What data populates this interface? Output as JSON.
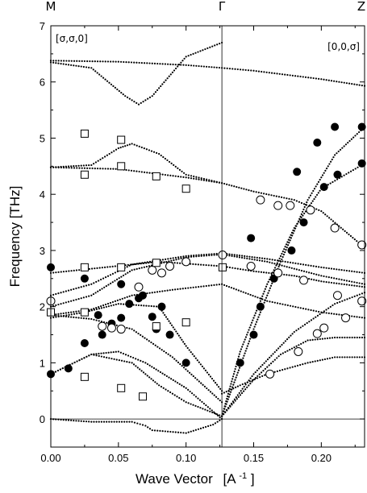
{
  "chart_data": {
    "type": "scatter",
    "xlabel": "Wave Vector",
    "xlabel_unit": "[A",
    "xlabel_sup": "-1",
    "xlabel_end": "]",
    "ylabel": "Frequency [THz]",
    "xlim": [
      0.0,
      0.232
    ],
    "ylim": [
      -0.5,
      7.0
    ],
    "gamma_x": 0.1265,
    "xticks": [
      0.0,
      0.05,
      0.1,
      0.15,
      0.2
    ],
    "xtick_labels": [
      "0.00",
      "0.05",
      "0.10",
      "0.15",
      "0.20"
    ],
    "yticks": [
      0,
      1,
      2,
      3,
      4,
      5,
      6,
      7
    ],
    "ytick_labels": [
      "0",
      "1",
      "2",
      "3",
      "4",
      "5",
      "6",
      "7"
    ],
    "symmetry_labels": {
      "left": "M",
      "center": "Γ",
      "right": "Z"
    },
    "panel_labels": {
      "left": "[σ,σ,0]",
      "right": "[0,0,σ]"
    },
    "grid": false,
    "series": [
      {
        "marker": "filled-circle",
        "points": [
          [
            0.0,
            2.7
          ],
          [
            0.0,
            0.8
          ],
          [
            0.013,
            0.9
          ],
          [
            0.025,
            2.5
          ],
          [
            0.025,
            1.35
          ],
          [
            0.035,
            1.85
          ],
          [
            0.038,
            1.5
          ],
          [
            0.045,
            1.7
          ],
          [
            0.052,
            2.4
          ],
          [
            0.052,
            1.8
          ],
          [
            0.058,
            2.05
          ],
          [
            0.065,
            2.15
          ],
          [
            0.068,
            2.2
          ],
          [
            0.075,
            1.82
          ],
          [
            0.078,
            1.6
          ],
          [
            0.082,
            2.0
          ],
          [
            0.088,
            1.5
          ],
          [
            0.1,
            1.0
          ],
          [
            0.14,
            1.0
          ],
          [
            0.148,
            3.22
          ],
          [
            0.15,
            1.5
          ],
          [
            0.155,
            2.0
          ],
          [
            0.165,
            2.5
          ],
          [
            0.178,
            3.0
          ],
          [
            0.182,
            4.4
          ],
          [
            0.187,
            3.5
          ],
          [
            0.197,
            4.92
          ],
          [
            0.202,
            4.13
          ],
          [
            0.21,
            5.2
          ],
          [
            0.212,
            4.35
          ],
          [
            0.23,
            5.2
          ],
          [
            0.23,
            4.55
          ]
        ]
      },
      {
        "marker": "open-circle",
        "points": [
          [
            0.0,
            2.1
          ],
          [
            0.038,
            1.65
          ],
          [
            0.045,
            1.62
          ],
          [
            0.052,
            1.6
          ],
          [
            0.065,
            2.35
          ],
          [
            0.075,
            2.65
          ],
          [
            0.082,
            2.6
          ],
          [
            0.088,
            2.72
          ],
          [
            0.1,
            2.8
          ],
          [
            0.127,
            2.92
          ],
          [
            0.148,
            2.72
          ],
          [
            0.155,
            3.9
          ],
          [
            0.162,
            0.8
          ],
          [
            0.168,
            3.8
          ],
          [
            0.177,
            3.8
          ],
          [
            0.168,
            2.6
          ],
          [
            0.183,
            1.2
          ],
          [
            0.187,
            2.47
          ],
          [
            0.192,
            3.72
          ],
          [
            0.197,
            1.52
          ],
          [
            0.202,
            1.62
          ],
          [
            0.212,
            2.2
          ],
          [
            0.21,
            3.4
          ],
          [
            0.218,
            1.8
          ],
          [
            0.23,
            3.1
          ],
          [
            0.23,
            2.1
          ]
        ]
      },
      {
        "marker": "open-square",
        "points": [
          [
            0.0,
            1.9
          ],
          [
            0.025,
            5.08
          ],
          [
            0.025,
            4.35
          ],
          [
            0.025,
            2.7
          ],
          [
            0.025,
            1.9
          ],
          [
            0.025,
            0.75
          ],
          [
            0.052,
            4.97
          ],
          [
            0.052,
            4.5
          ],
          [
            0.052,
            2.7
          ],
          [
            0.052,
            0.55
          ],
          [
            0.068,
            0.4
          ],
          [
            0.078,
            4.32
          ],
          [
            0.078,
            2.78
          ],
          [
            0.078,
            1.65
          ],
          [
            0.1,
            4.1
          ],
          [
            0.1,
            1.72
          ],
          [
            0.127,
            2.7
          ]
        ]
      }
    ],
    "curves": [
      {
        "x": [
          0.0,
          0.03,
          0.055,
          0.065,
          0.075,
          0.1,
          0.1265
        ],
        "y": [
          6.35,
          6.25,
          5.75,
          5.6,
          5.75,
          6.45,
          6.7
        ]
      },
      {
        "x": [
          0.0,
          0.05,
          0.1,
          0.1265,
          0.15,
          0.2,
          0.232
        ],
        "y": [
          6.38,
          6.36,
          6.3,
          6.25,
          6.2,
          6.05,
          5.93
        ]
      },
      {
        "x": [
          0.0,
          0.03,
          0.05,
          0.06,
          0.08,
          0.1,
          0.1265
        ],
        "y": [
          4.48,
          4.52,
          4.82,
          4.9,
          4.72,
          4.35,
          4.2
        ]
      },
      {
        "x": [
          0.0,
          0.05,
          0.1,
          0.1265,
          0.15,
          0.18,
          0.2,
          0.232
        ],
        "y": [
          4.48,
          4.45,
          4.3,
          4.2,
          4.05,
          3.9,
          3.7,
          3.05
        ]
      },
      {
        "x": [
          0.0,
          0.04,
          0.08,
          0.1265,
          0.15,
          0.18,
          0.2,
          0.232
        ],
        "y": [
          2.6,
          2.7,
          2.8,
          2.72,
          2.63,
          2.55,
          2.45,
          2.35
        ]
      },
      {
        "x": [
          0.0,
          0.03,
          0.06,
          0.1,
          0.1265,
          0.16,
          0.2,
          0.232
        ],
        "y": [
          2.2,
          2.4,
          2.75,
          2.9,
          2.95,
          2.85,
          2.7,
          2.6
        ]
      },
      {
        "x": [
          0.0,
          0.03,
          0.06,
          0.1,
          0.1265,
          0.16,
          0.2,
          0.232
        ],
        "y": [
          2.0,
          2.2,
          2.65,
          2.88,
          2.93,
          2.8,
          2.55,
          2.4
        ]
      },
      {
        "x": [
          0.0,
          0.03,
          0.06,
          0.09,
          0.1265,
          0.16,
          0.2,
          0.232
        ],
        "y": [
          1.85,
          1.95,
          2.2,
          2.3,
          2.4,
          2.1,
          1.9,
          1.8
        ]
      },
      {
        "x": [
          0.0,
          0.025,
          0.05,
          0.08,
          0.1,
          0.1265
        ],
        "y": [
          1.8,
          1.9,
          2.05,
          2.0,
          1.3,
          0.5
        ]
      },
      {
        "x": [
          0.0,
          0.03,
          0.05,
          0.07,
          0.1,
          0.1265
        ],
        "y": [
          0.8,
          1.15,
          1.2,
          1.0,
          0.55,
          0.0
        ]
      },
      {
        "x": [
          0.0,
          0.03,
          0.06,
          0.09,
          0.1265
        ],
        "y": [
          1.85,
          1.78,
          1.6,
          1.1,
          0.3
        ]
      },
      {
        "x": [
          0.0,
          0.03,
          0.06,
          0.07,
          0.075,
          0.1,
          0.12,
          0.1265
        ],
        "y": [
          0.0,
          -0.05,
          -0.05,
          -0.12,
          -0.2,
          -0.25,
          -0.1,
          0.0
        ]
      },
      {
        "x": [
          0.0,
          0.03,
          0.06,
          0.08,
          0.1,
          0.1265
        ],
        "y": [
          0.8,
          1.15,
          1.0,
          0.6,
          0.3,
          0.05
        ]
      },
      {
        "x": [
          0.1265,
          0.15,
          0.17,
          0.19,
          0.21,
          0.232
        ],
        "y": [
          0.05,
          1.6,
          2.8,
          3.9,
          4.7,
          5.2
        ]
      },
      {
        "x": [
          0.1265,
          0.14,
          0.16,
          0.18,
          0.2,
          0.232
        ],
        "y": [
          0.05,
          1.2,
          2.4,
          3.4,
          4.1,
          4.55
        ]
      },
      {
        "x": [
          0.1265,
          0.14,
          0.16,
          0.19,
          0.21,
          0.232
        ],
        "y": [
          0.45,
          0.6,
          0.8,
          1.0,
          1.1,
          1.1
        ]
      },
      {
        "x": [
          0.1265,
          0.15,
          0.17,
          0.19,
          0.21,
          0.232
        ],
        "y": [
          0.05,
          0.7,
          1.15,
          1.4,
          1.45,
          1.45
        ]
      },
      {
        "x": [
          0.1265,
          0.15,
          0.18,
          0.21,
          0.232
        ],
        "y": [
          0.05,
          0.8,
          1.55,
          2.05,
          2.25
        ]
      }
    ]
  }
}
